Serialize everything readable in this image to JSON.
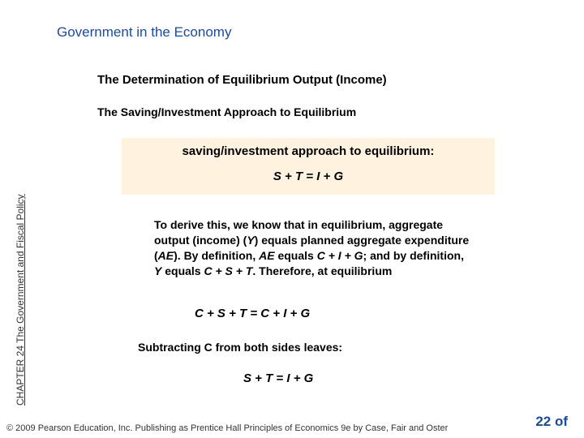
{
  "sidebar_label": "CHAPTER 24 The Government and Fiscal Policy",
  "section_title": "Government in the Economy",
  "subheading": "The Determination of Equilibrium Output (Income)",
  "sub2": "The Saving/Investment Approach to Equilibrium",
  "highlight": {
    "label": "saving/investment approach to equilibrium:",
    "equation": "S + T = I + G"
  },
  "body_html": "To derive this, we know that in equilibrium, aggregate output (income) (<span class=\"it\">Y</span>) equals planned aggregate expenditure (<span class=\"it\">AE</span>). By definition, <span class=\"it\">AE</span> equals <span class=\"it\">C + I + G</span>; and by definition, <span class=\"it\">Y</span> equals <span class=\"it\">C + S + T</span>. Therefore, at equilibrium",
  "eq2": "C + S + T = C + I + G",
  "body2": "Subtracting C from both sides leaves:",
  "eq3": "S + T = I + G",
  "footer": "© 2009 Pearson Education, Inc. Publishing as Prentice Hall   Principles of Economics 9e by Case, Fair and Oster",
  "page_num": "22 of",
  "colors": {
    "title_color": "#1a4ba0",
    "highlight_bg": "#fff3e0",
    "text": "#000000"
  }
}
